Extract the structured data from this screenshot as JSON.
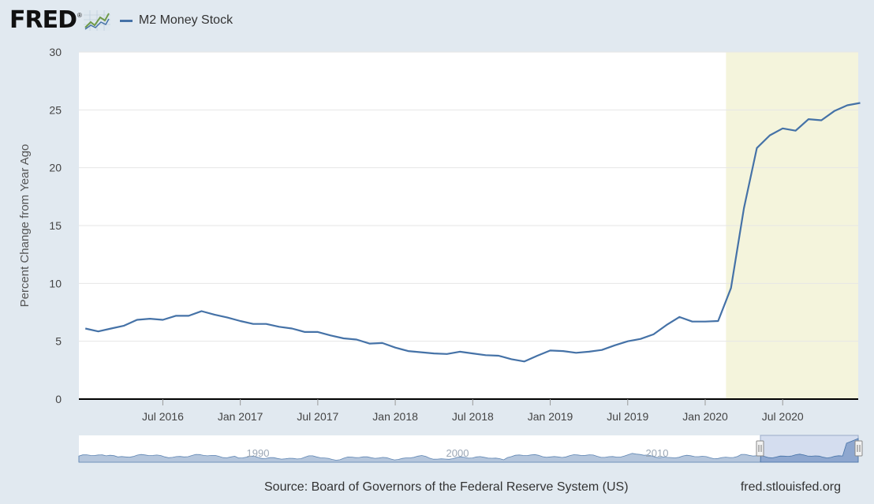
{
  "header": {
    "logo_text": "FRED",
    "logo_mark": "®",
    "logo_icon": "fred-graph-icon"
  },
  "chart_data": {
    "type": "line",
    "series": [
      {
        "name": "M2 Money Stock",
        "color": "#4572a7",
        "x": [
          "2016-01",
          "2016-02",
          "2016-03",
          "2016-04",
          "2016-05",
          "2016-06",
          "2016-07",
          "2016-08",
          "2016-09",
          "2016-10",
          "2016-11",
          "2016-12",
          "2017-01",
          "2017-02",
          "2017-03",
          "2017-04",
          "2017-05",
          "2017-06",
          "2017-07",
          "2017-08",
          "2017-09",
          "2017-10",
          "2017-11",
          "2017-12",
          "2018-01",
          "2018-02",
          "2018-03",
          "2018-04",
          "2018-05",
          "2018-06",
          "2018-07",
          "2018-08",
          "2018-09",
          "2018-10",
          "2018-11",
          "2018-12",
          "2019-01",
          "2019-02",
          "2019-03",
          "2019-04",
          "2019-05",
          "2019-06",
          "2019-07",
          "2019-08",
          "2019-09",
          "2019-10",
          "2019-11",
          "2019-12",
          "2020-01",
          "2020-02",
          "2020-03",
          "2020-04",
          "2020-05",
          "2020-06",
          "2020-07",
          "2020-08",
          "2020-09",
          "2020-10",
          "2020-11",
          "2020-12",
          "2021-01"
        ],
        "values": [
          6.1,
          5.85,
          6.1,
          6.35,
          6.85,
          6.95,
          6.85,
          7.2,
          7.2,
          7.6,
          7.3,
          7.05,
          6.75,
          6.5,
          6.5,
          6.25,
          6.1,
          5.8,
          5.8,
          5.5,
          5.25,
          5.15,
          4.8,
          4.85,
          4.45,
          4.15,
          4.05,
          3.95,
          3.9,
          4.1,
          3.95,
          3.8,
          3.75,
          3.45,
          3.25,
          3.75,
          4.2,
          4.15,
          4.0,
          4.1,
          4.25,
          4.65,
          5.0,
          5.2,
          5.6,
          6.4,
          7.1,
          6.7,
          6.7,
          6.75,
          9.6,
          16.5,
          21.7,
          22.8,
          23.4,
          23.2,
          24.2,
          24.1,
          24.9,
          25.4,
          25.6
        ]
      }
    ],
    "x_ticks": [
      "Jul 2016",
      "Jan 2017",
      "Jul 2017",
      "Jan 2018",
      "Jul 2018",
      "Jan 2019",
      "Jul 2019",
      "Jan 2020",
      "Jul 2020"
    ],
    "x_tick_dates": [
      "2016-07",
      "2017-01",
      "2017-07",
      "2018-01",
      "2018-07",
      "2019-01",
      "2019-07",
      "2020-01",
      "2020-07"
    ],
    "ylabel": "Percent Change from Year Ago",
    "ylim": [
      0,
      30
    ],
    "y_ticks": [
      0,
      5,
      10,
      15,
      20,
      25,
      30
    ],
    "recession_shading": {
      "start": "2020-02",
      "end": "2021-01",
      "color": "#f4f4dc"
    },
    "grid": true,
    "navigator": {
      "labels": [
        "1990",
        "2000",
        "2010"
      ]
    }
  },
  "footer": {
    "source": "Source: Board of Governors of the Federal Reserve System (US)",
    "site": "fred.stlouisfed.org"
  }
}
